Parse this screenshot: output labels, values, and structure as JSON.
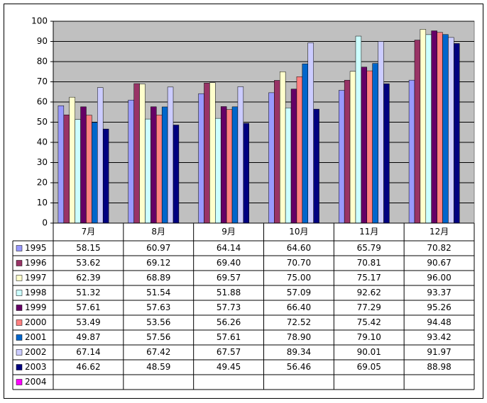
{
  "chart_data": {
    "type": "bar",
    "categories": [
      "7月",
      "8月",
      "9月",
      "10月",
      "11月",
      "12月"
    ],
    "ylim": [
      0,
      100
    ],
    "yticks": [
      0,
      10,
      20,
      30,
      40,
      50,
      60,
      70,
      80,
      90,
      100
    ],
    "grid": true,
    "series": [
      {
        "name": "1995",
        "color": "#9999FF",
        "values": [
          58.15,
          60.97,
          64.14,
          64.6,
          65.79,
          70.82
        ],
        "value_labels": [
          "58.15",
          "60.97",
          "64.14",
          "64.60",
          "65.79",
          "70.82"
        ]
      },
      {
        "name": "1996",
        "color": "#993366",
        "values": [
          53.62,
          69.12,
          69.4,
          70.7,
          70.81,
          90.67
        ],
        "value_labels": [
          "53.62",
          "69.12",
          "69.40",
          "70.70",
          "70.81",
          "90.67"
        ]
      },
      {
        "name": "1997",
        "color": "#FFFFCC",
        "values": [
          62.39,
          68.89,
          69.57,
          75,
          75.17,
          96
        ],
        "value_labels": [
          "62.39",
          "68.89",
          "69.57",
          "75.00",
          "75.17",
          "96.00"
        ]
      },
      {
        "name": "1998",
        "color": "#CCFFFF",
        "values": [
          51.32,
          51.54,
          51.88,
          57.09,
          92.62,
          93.37
        ],
        "value_labels": [
          "51.32",
          "51.54",
          "51.88",
          "57.09",
          "92.62",
          "93.37"
        ]
      },
      {
        "name": "1999",
        "color": "#660066",
        "values": [
          57.61,
          57.63,
          57.73,
          66.4,
          77.29,
          95.26
        ],
        "value_labels": [
          "57.61",
          "57.63",
          "57.73",
          "66.40",
          "77.29",
          "95.26"
        ]
      },
      {
        "name": "2000",
        "color": "#FF8080",
        "values": [
          53.49,
          53.56,
          56.26,
          72.52,
          75.42,
          94.48
        ],
        "value_labels": [
          "53.49",
          "53.56",
          "56.26",
          "72.52",
          "75.42",
          "94.48"
        ]
      },
      {
        "name": "2001",
        "color": "#0066CC",
        "values": [
          49.87,
          57.56,
          57.61,
          78.9,
          79.1,
          93.42
        ],
        "value_labels": [
          "49.87",
          "57.56",
          "57.61",
          "78.90",
          "79.10",
          "93.42"
        ]
      },
      {
        "name": "2002",
        "color": "#CCCCFF",
        "values": [
          67.14,
          67.42,
          67.57,
          89.34,
          90.01,
          91.97
        ],
        "value_labels": [
          "67.14",
          "67.42",
          "67.57",
          "89.34",
          "90.01",
          "91.97"
        ]
      },
      {
        "name": "2003",
        "color": "#000080",
        "values": [
          46.62,
          48.59,
          49.45,
          56.46,
          69.05,
          88.98
        ],
        "value_labels": [
          "46.62",
          "48.59",
          "49.45",
          "56.46",
          "69.05",
          "88.98"
        ]
      },
      {
        "name": "2004",
        "color": "#FF00FF",
        "values": [
          null,
          null,
          null,
          null,
          null,
          null
        ]
      }
    ]
  }
}
